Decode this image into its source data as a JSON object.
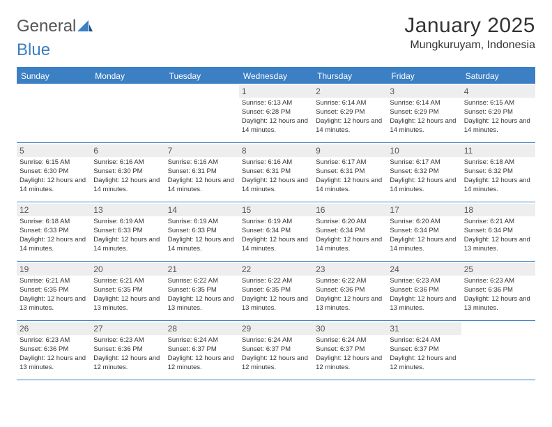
{
  "brand": {
    "name_part1": "General",
    "name_part2": "Blue"
  },
  "title": "January 2025",
  "location": "Mungkuruyam, Indonesia",
  "colors": {
    "accent": "#3b7fc4",
    "header_bg": "#3b7fc4",
    "daynum_bg": "#eeeeee",
    "text": "#333333",
    "background": "#ffffff"
  },
  "typography": {
    "title_fontsize": 30,
    "location_fontsize": 16,
    "weekday_fontsize": 12,
    "daynum_fontsize": 12,
    "detail_fontsize": 9.5,
    "font_family": "Arial"
  },
  "weekdays": [
    "Sunday",
    "Monday",
    "Tuesday",
    "Wednesday",
    "Thursday",
    "Friday",
    "Saturday"
  ],
  "weeks": [
    [
      {
        "day": "",
        "sunrise": "",
        "sunset": "",
        "daylight": ""
      },
      {
        "day": "",
        "sunrise": "",
        "sunset": "",
        "daylight": ""
      },
      {
        "day": "",
        "sunrise": "",
        "sunset": "",
        "daylight": ""
      },
      {
        "day": "1",
        "sunrise": "Sunrise: 6:13 AM",
        "sunset": "Sunset: 6:28 PM",
        "daylight": "Daylight: 12 hours and 14 minutes."
      },
      {
        "day": "2",
        "sunrise": "Sunrise: 6:14 AM",
        "sunset": "Sunset: 6:29 PM",
        "daylight": "Daylight: 12 hours and 14 minutes."
      },
      {
        "day": "3",
        "sunrise": "Sunrise: 6:14 AM",
        "sunset": "Sunset: 6:29 PM",
        "daylight": "Daylight: 12 hours and 14 minutes."
      },
      {
        "day": "4",
        "sunrise": "Sunrise: 6:15 AM",
        "sunset": "Sunset: 6:29 PM",
        "daylight": "Daylight: 12 hours and 14 minutes."
      }
    ],
    [
      {
        "day": "5",
        "sunrise": "Sunrise: 6:15 AM",
        "sunset": "Sunset: 6:30 PM",
        "daylight": "Daylight: 12 hours and 14 minutes."
      },
      {
        "day": "6",
        "sunrise": "Sunrise: 6:16 AM",
        "sunset": "Sunset: 6:30 PM",
        "daylight": "Daylight: 12 hours and 14 minutes."
      },
      {
        "day": "7",
        "sunrise": "Sunrise: 6:16 AM",
        "sunset": "Sunset: 6:31 PM",
        "daylight": "Daylight: 12 hours and 14 minutes."
      },
      {
        "day": "8",
        "sunrise": "Sunrise: 6:16 AM",
        "sunset": "Sunset: 6:31 PM",
        "daylight": "Daylight: 12 hours and 14 minutes."
      },
      {
        "day": "9",
        "sunrise": "Sunrise: 6:17 AM",
        "sunset": "Sunset: 6:31 PM",
        "daylight": "Daylight: 12 hours and 14 minutes."
      },
      {
        "day": "10",
        "sunrise": "Sunrise: 6:17 AM",
        "sunset": "Sunset: 6:32 PM",
        "daylight": "Daylight: 12 hours and 14 minutes."
      },
      {
        "day": "11",
        "sunrise": "Sunrise: 6:18 AM",
        "sunset": "Sunset: 6:32 PM",
        "daylight": "Daylight: 12 hours and 14 minutes."
      }
    ],
    [
      {
        "day": "12",
        "sunrise": "Sunrise: 6:18 AM",
        "sunset": "Sunset: 6:33 PM",
        "daylight": "Daylight: 12 hours and 14 minutes."
      },
      {
        "day": "13",
        "sunrise": "Sunrise: 6:19 AM",
        "sunset": "Sunset: 6:33 PM",
        "daylight": "Daylight: 12 hours and 14 minutes."
      },
      {
        "day": "14",
        "sunrise": "Sunrise: 6:19 AM",
        "sunset": "Sunset: 6:33 PM",
        "daylight": "Daylight: 12 hours and 14 minutes."
      },
      {
        "day": "15",
        "sunrise": "Sunrise: 6:19 AM",
        "sunset": "Sunset: 6:34 PM",
        "daylight": "Daylight: 12 hours and 14 minutes."
      },
      {
        "day": "16",
        "sunrise": "Sunrise: 6:20 AM",
        "sunset": "Sunset: 6:34 PM",
        "daylight": "Daylight: 12 hours and 14 minutes."
      },
      {
        "day": "17",
        "sunrise": "Sunrise: 6:20 AM",
        "sunset": "Sunset: 6:34 PM",
        "daylight": "Daylight: 12 hours and 14 minutes."
      },
      {
        "day": "18",
        "sunrise": "Sunrise: 6:21 AM",
        "sunset": "Sunset: 6:34 PM",
        "daylight": "Daylight: 12 hours and 13 minutes."
      }
    ],
    [
      {
        "day": "19",
        "sunrise": "Sunrise: 6:21 AM",
        "sunset": "Sunset: 6:35 PM",
        "daylight": "Daylight: 12 hours and 13 minutes."
      },
      {
        "day": "20",
        "sunrise": "Sunrise: 6:21 AM",
        "sunset": "Sunset: 6:35 PM",
        "daylight": "Daylight: 12 hours and 13 minutes."
      },
      {
        "day": "21",
        "sunrise": "Sunrise: 6:22 AM",
        "sunset": "Sunset: 6:35 PM",
        "daylight": "Daylight: 12 hours and 13 minutes."
      },
      {
        "day": "22",
        "sunrise": "Sunrise: 6:22 AM",
        "sunset": "Sunset: 6:35 PM",
        "daylight": "Daylight: 12 hours and 13 minutes."
      },
      {
        "day": "23",
        "sunrise": "Sunrise: 6:22 AM",
        "sunset": "Sunset: 6:36 PM",
        "daylight": "Daylight: 12 hours and 13 minutes."
      },
      {
        "day": "24",
        "sunrise": "Sunrise: 6:23 AM",
        "sunset": "Sunset: 6:36 PM",
        "daylight": "Daylight: 12 hours and 13 minutes."
      },
      {
        "day": "25",
        "sunrise": "Sunrise: 6:23 AM",
        "sunset": "Sunset: 6:36 PM",
        "daylight": "Daylight: 12 hours and 13 minutes."
      }
    ],
    [
      {
        "day": "26",
        "sunrise": "Sunrise: 6:23 AM",
        "sunset": "Sunset: 6:36 PM",
        "daylight": "Daylight: 12 hours and 13 minutes."
      },
      {
        "day": "27",
        "sunrise": "Sunrise: 6:23 AM",
        "sunset": "Sunset: 6:36 PM",
        "daylight": "Daylight: 12 hours and 12 minutes."
      },
      {
        "day": "28",
        "sunrise": "Sunrise: 6:24 AM",
        "sunset": "Sunset: 6:37 PM",
        "daylight": "Daylight: 12 hours and 12 minutes."
      },
      {
        "day": "29",
        "sunrise": "Sunrise: 6:24 AM",
        "sunset": "Sunset: 6:37 PM",
        "daylight": "Daylight: 12 hours and 12 minutes."
      },
      {
        "day": "30",
        "sunrise": "Sunrise: 6:24 AM",
        "sunset": "Sunset: 6:37 PM",
        "daylight": "Daylight: 12 hours and 12 minutes."
      },
      {
        "day": "31",
        "sunrise": "Sunrise: 6:24 AM",
        "sunset": "Sunset: 6:37 PM",
        "daylight": "Daylight: 12 hours and 12 minutes."
      },
      {
        "day": "",
        "sunrise": "",
        "sunset": "",
        "daylight": ""
      }
    ]
  ]
}
